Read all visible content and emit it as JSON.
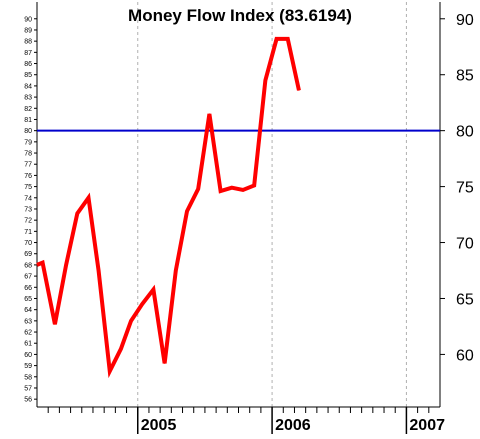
{
  "chart_data": {
    "type": "line",
    "title": "Money Flow Index (83.6194)",
    "xlabel": "",
    "ylabel": "",
    "ylim": [
      55.3,
      91.5
    ],
    "x_range_months": [
      0,
      36
    ],
    "year_labels": [
      {
        "label": "2005",
        "month": 9
      },
      {
        "label": "2006",
        "month": 21
      },
      {
        "label": "2007",
        "month": 33
      }
    ],
    "left_ticks": [
      56,
      57,
      58,
      59,
      60,
      61,
      62,
      63,
      64,
      65,
      66,
      67,
      68,
      69,
      70,
      71,
      72,
      73,
      74,
      75,
      76,
      77,
      78,
      79,
      80,
      81,
      82,
      83,
      84,
      85,
      86,
      87,
      88,
      89,
      90
    ],
    "right_ticks": [
      60,
      65,
      70,
      75,
      80,
      85,
      90
    ],
    "reference_line": {
      "value": 80,
      "color": "#0000cc"
    },
    "grid": "vertical-dashed",
    "series": [
      {
        "color": "#ff0000",
        "x": [
          0,
          0.5,
          1.6,
          2.6,
          3.6,
          4.6,
          5.5,
          6.5,
          7.5,
          8.4,
          9.4,
          10.4,
          11.4,
          12.4,
          13.4,
          14.4,
          15.4,
          16.4,
          17.4,
          18.4,
          19.4,
          20.4,
          21.4,
          22.4,
          23.4
        ],
        "y": [
          68.0,
          68.2,
          62.7,
          68.0,
          72.6,
          74.0,
          67.5,
          58.5,
          60.5,
          63.0,
          64.5,
          65.8,
          59.2,
          67.5,
          72.8,
          74.8,
          81.5,
          74.6,
          74.9,
          74.7,
          75.1,
          84.5,
          88.2,
          88.2,
          83.6
        ]
      }
    ]
  }
}
